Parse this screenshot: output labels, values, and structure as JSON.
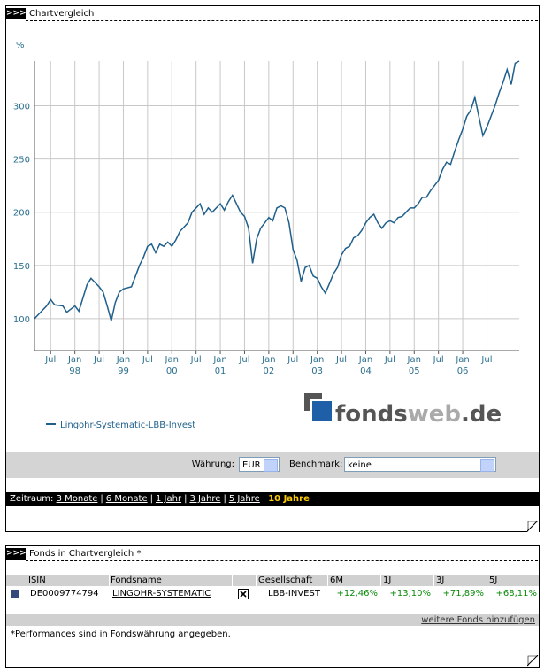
{
  "panel1": {
    "marker": ">>>",
    "title": "Chartvergleich"
  },
  "chart_data": {
    "type": "line",
    "ylabel": "%",
    "grid": true,
    "legend": "bottom-left",
    "x": [
      "1997-03",
      "1997-06",
      "1997-07",
      "1997-08",
      "1997-10",
      "1997-11",
      "1998-01",
      "1998-02",
      "1998-04",
      "1998-05",
      "1998-06",
      "1998-07",
      "1998-08",
      "1998-09",
      "1998-10",
      "1998-11",
      "1998-12",
      "1999-01",
      "1999-03",
      "1999-04",
      "1999-05",
      "1999-06",
      "1999-07",
      "1999-08",
      "1999-09",
      "1999-10",
      "1999-11",
      "1999-12",
      "2000-01",
      "2000-02",
      "2000-03",
      "2000-04",
      "2000-05",
      "2000-06",
      "2000-08",
      "2000-09",
      "2000-10",
      "2000-11",
      "2001-01",
      "2001-02",
      "2001-03",
      "2001-04",
      "2001-05",
      "2001-06",
      "2001-07",
      "2001-08",
      "2001-09",
      "2001-10",
      "2001-11",
      "2001-12",
      "2002-01",
      "2002-02",
      "2002-03",
      "2002-04",
      "2002-05",
      "2002-06",
      "2002-07",
      "2002-08",
      "2002-09",
      "2002-10",
      "2002-11",
      "2002-12",
      "2003-01",
      "2003-02",
      "2003-03",
      "2003-04",
      "2003-05",
      "2003-06",
      "2003-07",
      "2003-08",
      "2003-09",
      "2003-10",
      "2003-11",
      "2003-12",
      "2004-01",
      "2004-02",
      "2004-03",
      "2004-04",
      "2004-05",
      "2004-06",
      "2004-07",
      "2004-08",
      "2004-09",
      "2004-10",
      "2004-11",
      "2004-12",
      "2005-01",
      "2005-02",
      "2005-03",
      "2005-04",
      "2005-05",
      "2005-06",
      "2005-07",
      "2005-08",
      "2005-09",
      "2005-10",
      "2005-11",
      "2005-12",
      "2006-01",
      "2006-02",
      "2006-03",
      "2006-04",
      "2006-05",
      "2006-06",
      "2006-07",
      "2006-08",
      "2006-09",
      "2006-10",
      "2006-11",
      "2006-12",
      "2007-01",
      "2007-02",
      "2007-03"
    ],
    "series": [
      {
        "name": "Lingohr-Systematic-LBB-Invest",
        "color": "#1f5f8b",
        "values": [
          100,
          112,
          118,
          113,
          112,
          106,
          112,
          107,
          132,
          138,
          134,
          130,
          125,
          112,
          98,
          115,
          125,
          128,
          130,
          140,
          150,
          158,
          168,
          170,
          162,
          170,
          168,
          172,
          168,
          174,
          182,
          186,
          190,
          200,
          208,
          198,
          204,
          200,
          208,
          202,
          210,
          216,
          208,
          200,
          196,
          185,
          152,
          175,
          185,
          190,
          195,
          192,
          204,
          206,
          204,
          190,
          165,
          155,
          135,
          148,
          150,
          140,
          138,
          130,
          124,
          133,
          142,
          148,
          160,
          166,
          168,
          176,
          178,
          183,
          190,
          195,
          198,
          190,
          185,
          190,
          192,
          190,
          195,
          196,
          200,
          204,
          204,
          208,
          214,
          214,
          220,
          225,
          230,
          240,
          247,
          245,
          257,
          268,
          278,
          290,
          296,
          308,
          290,
          272,
          280,
          290,
          300,
          312,
          322,
          334,
          320,
          340,
          342
        ]
      }
    ],
    "xlim": [
      "1997-03",
      "2007-03"
    ],
    "xticks": [
      {
        "value": "1997-07",
        "label": "Jul"
      },
      {
        "value": "1998-01",
        "label": "Jan",
        "year": "98"
      },
      {
        "value": "1998-07",
        "label": "Jul"
      },
      {
        "value": "1999-01",
        "label": "Jan",
        "year": "99"
      },
      {
        "value": "1999-07",
        "label": "Jul"
      },
      {
        "value": "2000-01",
        "label": "Jan",
        "year": "00"
      },
      {
        "value": "2000-07",
        "label": "Jul"
      },
      {
        "value": "2001-01",
        "label": "Jan",
        "year": "01"
      },
      {
        "value": "2001-07",
        "label": "Jul"
      },
      {
        "value": "2002-01",
        "label": "Jan",
        "year": "02"
      },
      {
        "value": "2002-07",
        "label": "Jul"
      },
      {
        "value": "2003-01",
        "label": "Jan",
        "year": "03"
      },
      {
        "value": "2003-07",
        "label": "Jul"
      },
      {
        "value": "2004-01",
        "label": "Jan",
        "year": "04"
      },
      {
        "value": "2004-07",
        "label": "Jul"
      },
      {
        "value": "2005-01",
        "label": "Jan",
        "year": "05"
      },
      {
        "value": "2005-07",
        "label": "Jul"
      },
      {
        "value": "2006-01",
        "label": "Jan",
        "year": "06"
      },
      {
        "value": "2006-07",
        "label": "Jul"
      }
    ],
    "ylim": [
      70,
      342
    ],
    "yticks": [
      100,
      150,
      200,
      250,
      300
    ]
  },
  "logo": {
    "part1": "fonds",
    "part2": "web",
    "part3": ".de"
  },
  "controls": {
    "currency_label": "Währung:",
    "currency": "EUR",
    "benchmark_label": "Benchmark:",
    "benchmark": "keine"
  },
  "period": {
    "label": "Zeitraum:",
    "separator": "|",
    "options": [
      "3 Monate",
      "6 Monate",
      "1 Jahr",
      "3 Jahre",
      "5 Jahre",
      "10 Jahre"
    ],
    "active": 5
  },
  "panel2": {
    "marker": ">>>",
    "title": "Fonds in Chartvergleich *"
  },
  "table": {
    "columns": [
      "ISIN",
      "Fondsname",
      "Gesellschaft",
      "6M",
      "1J",
      "3J",
      "5J"
    ],
    "rows": [
      {
        "isin": "DE0009774794",
        "name": "LINGOHR-SYSTEMATIC",
        "company": "LBB-INVEST",
        "performances": [
          "+12,46%",
          "+13,10%",
          "+71,89%",
          "+68,11%"
        ]
      }
    ]
  },
  "add_link": "weitere Fonds hinzufügen",
  "note": "*Performances sind in Fondswährung angegeben."
}
